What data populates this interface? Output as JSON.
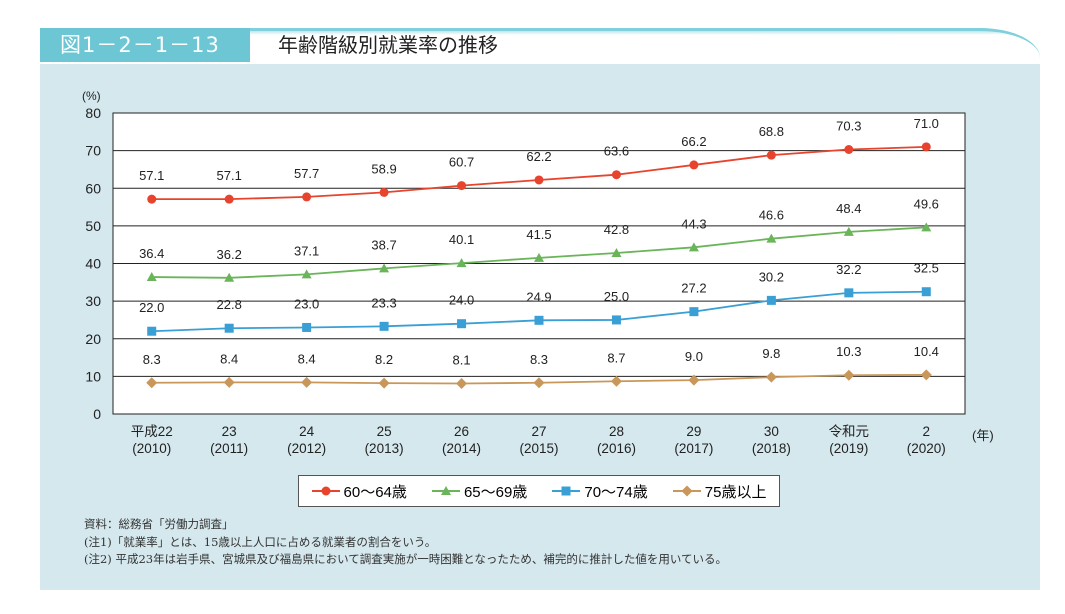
{
  "header": {
    "figure_no": "図1－2－1－13",
    "title": "年齢階級別就業率の推移"
  },
  "chart_data": {
    "type": "line",
    "title": "年齢階級別就業率の推移",
    "ylabel": "(%)",
    "xlabel": "(年)",
    "ylim": [
      0,
      80
    ],
    "yticks": [
      0,
      10,
      20,
      30,
      40,
      50,
      60,
      70,
      80
    ],
    "categories": [
      [
        "平成22",
        "(2010)"
      ],
      [
        "23",
        "(2011)"
      ],
      [
        "24",
        "(2012)"
      ],
      [
        "25",
        "(2013)"
      ],
      [
        "26",
        "(2014)"
      ],
      [
        "27",
        "(2015)"
      ],
      [
        "28",
        "(2016)"
      ],
      [
        "29",
        "(2017)"
      ],
      [
        "30",
        "(2018)"
      ],
      [
        "令和元",
        "(2019)"
      ],
      [
        "2",
        "(2020)"
      ]
    ],
    "series": [
      {
        "name": "60～64歳",
        "color": "#e8432c",
        "marker": "circle",
        "values": [
          57.1,
          57.1,
          57.7,
          58.9,
          60.7,
          62.2,
          63.6,
          66.2,
          68.8,
          70.3,
          71.0
        ]
      },
      {
        "name": "65～69歳",
        "color": "#6ab55a",
        "marker": "triangle",
        "values": [
          36.4,
          36.2,
          37.1,
          38.7,
          40.1,
          41.5,
          42.8,
          44.3,
          46.6,
          48.4,
          49.6
        ]
      },
      {
        "name": "70～74歳",
        "color": "#3a9fd4",
        "marker": "square",
        "values": [
          22.0,
          22.8,
          23.0,
          23.3,
          24.0,
          24.9,
          25.0,
          27.2,
          30.2,
          32.2,
          32.5
        ]
      },
      {
        "name": "75歳以上",
        "color": "#c9975a",
        "marker": "diamond",
        "values": [
          8.3,
          8.4,
          8.4,
          8.2,
          8.1,
          8.3,
          8.7,
          9.0,
          9.8,
          10.3,
          10.4
        ]
      }
    ],
    "grid": true,
    "legend": "bottom"
  },
  "notes": [
    "資料：総務省「労働力調査」",
    "(注1)「就業率」とは、15歳以上人口に占める就業者の割合をいう。",
    "(注2) 平成23年は岩手県、宮城県及び福島県において調査実施が一時困難となったため、補完的に推計した値を用いている。"
  ]
}
